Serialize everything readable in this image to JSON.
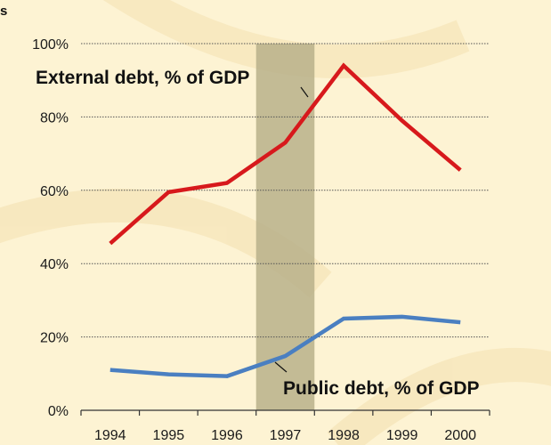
{
  "corner_text": "s",
  "chart_data": {
    "type": "line",
    "title": "",
    "xlabel": "",
    "ylabel": "",
    "x": [
      "1994",
      "1995",
      "1996",
      "1997",
      "1998",
      "1999",
      "2000"
    ],
    "ylim": [
      0,
      100
    ],
    "y_ticks": [
      "0%",
      "20%",
      "40%",
      "60%",
      "80%",
      "100%"
    ],
    "y_tick_values": [
      0,
      20,
      40,
      60,
      80,
      100
    ],
    "grid": "horizontal dotted",
    "highlight_band": {
      "category": "1997"
    },
    "series": [
      {
        "name": "External debt, % of GDP",
        "values": [
          45.5,
          59.5,
          62,
          73,
          94,
          79,
          65.5
        ],
        "color": "#d7191c"
      },
      {
        "name": "Public debt, % of GDP",
        "values": [
          11,
          9.8,
          9.3,
          14.8,
          25,
          25.5,
          24
        ],
        "color": "#4a7fc1"
      }
    ],
    "annotations": [
      {
        "text": "External debt, % of GDP",
        "series": 0
      },
      {
        "text": "Public debt, % of GDP",
        "series": 1
      }
    ],
    "colors": {
      "band": "#b9b08a",
      "grid": "#555555",
      "axis": "#333333"
    }
  }
}
